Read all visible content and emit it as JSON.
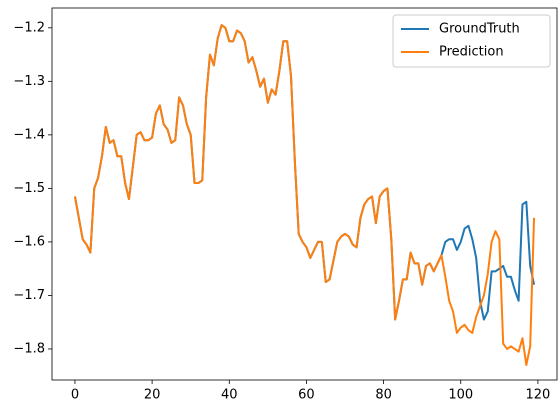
{
  "chart_data": {
    "type": "line",
    "x": [
      0,
      1,
      2,
      3,
      4,
      5,
      6,
      7,
      8,
      9,
      10,
      11,
      12,
      13,
      14,
      15,
      16,
      17,
      18,
      19,
      20,
      21,
      22,
      23,
      24,
      25,
      26,
      27,
      28,
      29,
      30,
      31,
      32,
      33,
      34,
      35,
      36,
      37,
      38,
      39,
      40,
      41,
      42,
      43,
      44,
      45,
      46,
      47,
      48,
      49,
      50,
      51,
      52,
      53,
      54,
      55,
      56,
      57,
      58,
      59,
      60,
      61,
      62,
      63,
      64,
      65,
      66,
      67,
      68,
      69,
      70,
      71,
      72,
      73,
      74,
      75,
      76,
      77,
      78,
      79,
      80,
      81,
      82,
      83,
      84,
      85,
      86,
      87,
      88,
      89,
      90,
      91,
      92,
      93,
      94,
      95,
      96,
      97,
      98,
      99,
      100,
      101,
      102,
      103,
      104,
      105,
      106,
      107,
      108,
      109,
      110,
      111,
      112,
      113,
      114,
      115,
      116,
      117,
      118,
      119
    ],
    "series": [
      {
        "name": "GroundTruth",
        "color": "#1f77b4",
        "values": [
          -1.515,
          -1.555,
          -1.595,
          -1.605,
          -1.62,
          -1.5,
          -1.48,
          -1.44,
          -1.385,
          -1.415,
          -1.41,
          -1.44,
          -1.44,
          -1.49,
          -1.52,
          -1.46,
          -1.4,
          -1.395,
          -1.41,
          -1.41,
          -1.405,
          -1.36,
          -1.345,
          -1.38,
          -1.39,
          -1.415,
          -1.41,
          -1.33,
          -1.345,
          -1.38,
          -1.4,
          -1.49,
          -1.49,
          -1.485,
          -1.33,
          -1.25,
          -1.27,
          -1.22,
          -1.195,
          -1.2,
          -1.225,
          -1.225,
          -1.205,
          -1.21,
          -1.225,
          -1.265,
          -1.255,
          -1.28,
          -1.31,
          -1.295,
          -1.34,
          -1.315,
          -1.325,
          -1.28,
          -1.225,
          -1.225,
          -1.29,
          -1.45,
          -1.585,
          -1.6,
          -1.61,
          -1.63,
          -1.615,
          -1.6,
          -1.6,
          -1.675,
          -1.67,
          -1.635,
          -1.6,
          -1.59,
          -1.585,
          -1.59,
          -1.605,
          -1.61,
          -1.555,
          -1.53,
          -1.52,
          -1.515,
          -1.565,
          -1.515,
          -1.505,
          -1.5,
          -1.595,
          -1.745,
          -1.71,
          -1.67,
          -1.67,
          -1.62,
          -1.64,
          -1.64,
          -1.68,
          -1.645,
          -1.64,
          -1.655,
          -1.64,
          -1.625,
          -1.6,
          -1.595,
          -1.595,
          -1.615,
          -1.6,
          -1.575,
          -1.57,
          -1.595,
          -1.63,
          -1.71,
          -1.745,
          -1.73,
          -1.655,
          -1.655,
          -1.65,
          -1.645,
          -1.665,
          -1.665,
          -1.69,
          -1.71,
          -1.53,
          -1.525,
          -1.645,
          -1.68
        ]
      },
      {
        "name": "Prediction",
        "color": "#ff7f0e",
        "values": [
          -1.515,
          -1.555,
          -1.595,
          -1.605,
          -1.62,
          -1.5,
          -1.48,
          -1.44,
          -1.385,
          -1.415,
          -1.41,
          -1.44,
          -1.44,
          -1.49,
          -1.52,
          -1.46,
          -1.4,
          -1.395,
          -1.41,
          -1.41,
          -1.405,
          -1.36,
          -1.345,
          -1.38,
          -1.39,
          -1.415,
          -1.41,
          -1.33,
          -1.345,
          -1.38,
          -1.4,
          -1.49,
          -1.49,
          -1.485,
          -1.33,
          -1.25,
          -1.27,
          -1.22,
          -1.195,
          -1.2,
          -1.225,
          -1.225,
          -1.205,
          -1.21,
          -1.225,
          -1.265,
          -1.255,
          -1.28,
          -1.31,
          -1.295,
          -1.34,
          -1.315,
          -1.325,
          -1.28,
          -1.225,
          -1.225,
          -1.29,
          -1.45,
          -1.585,
          -1.6,
          -1.61,
          -1.63,
          -1.615,
          -1.6,
          -1.6,
          -1.675,
          -1.67,
          -1.635,
          -1.6,
          -1.59,
          -1.585,
          -1.59,
          -1.605,
          -1.61,
          -1.555,
          -1.53,
          -1.52,
          -1.515,
          -1.565,
          -1.515,
          -1.505,
          -1.5,
          -1.595,
          -1.745,
          -1.71,
          -1.67,
          -1.67,
          -1.62,
          -1.64,
          -1.64,
          -1.68,
          -1.645,
          -1.64,
          -1.655,
          -1.64,
          -1.625,
          -1.665,
          -1.71,
          -1.73,
          -1.77,
          -1.76,
          -1.755,
          -1.765,
          -1.77,
          -1.74,
          -1.72,
          -1.7,
          -1.66,
          -1.6,
          -1.58,
          -1.595,
          -1.79,
          -1.8,
          -1.795,
          -1.8,
          -1.805,
          -1.78,
          -1.83,
          -1.795,
          -1.555
        ]
      }
    ],
    "xlim": [
      -5.95,
      124.95
    ],
    "xticks": [
      0,
      20,
      40,
      60,
      80,
      100,
      120
    ],
    "ylim": [
      -1.858,
      -1.163
    ],
    "yticks": [
      {
        "value": -1.8,
        "label": "−1.8"
      },
      {
        "value": -1.7,
        "label": "−1.7"
      },
      {
        "value": -1.6,
        "label": "−1.6"
      },
      {
        "value": -1.5,
        "label": "−1.5"
      },
      {
        "value": -1.4,
        "label": "−1.4"
      },
      {
        "value": -1.3,
        "label": "−1.3"
      },
      {
        "value": -1.2,
        "label": "−1.2"
      }
    ],
    "legend": "upper right"
  }
}
